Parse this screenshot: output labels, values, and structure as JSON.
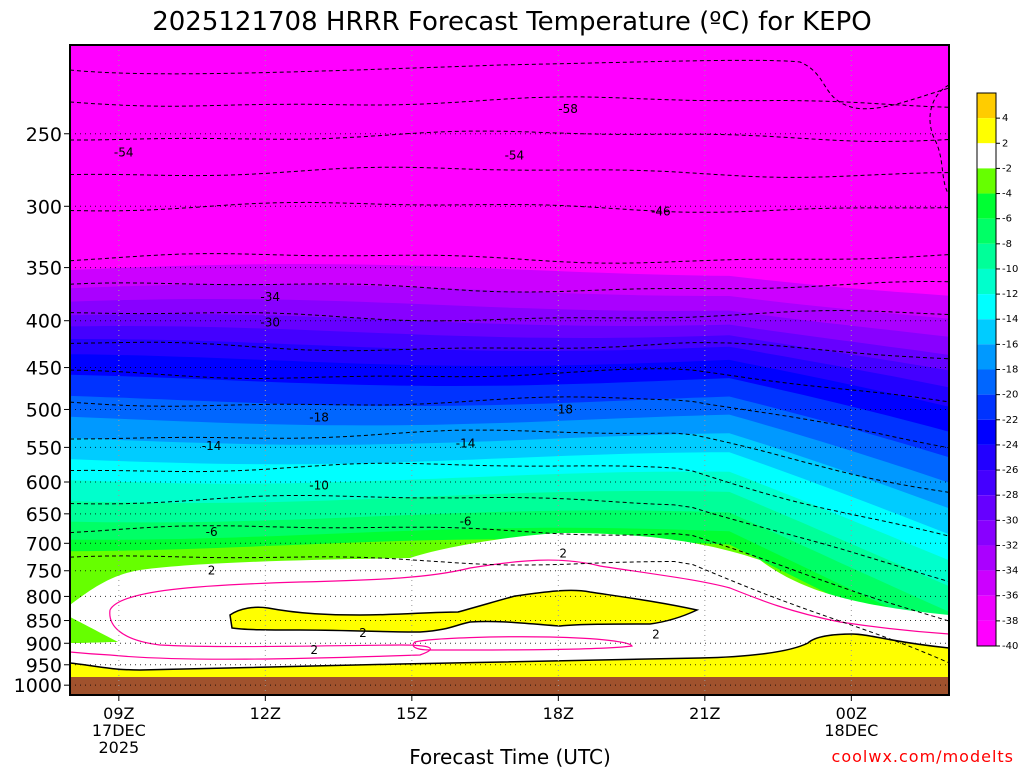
{
  "chart_data": {
    "type": "heatmap",
    "title": "2025121708 HRRR Forecast Temperature (ºC) for KEPO",
    "xlabel": "Forecast Time (UTC)",
    "ylabel": "",
    "watermark": "coolwx.com/modelts",
    "x_ticks": [
      {
        "time": 9,
        "label": "09Z",
        "sub1": "17DEC",
        "sub2": "2025"
      },
      {
        "time": 12,
        "label": "12Z"
      },
      {
        "time": 15,
        "label": "15Z"
      },
      {
        "time": 18,
        "label": "18Z"
      },
      {
        "time": 21,
        "label": "21Z"
      },
      {
        "time": 24,
        "label": "00Z",
        "sub1": "18DEC"
      }
    ],
    "x_range": [
      8,
      26
    ],
    "y_ticks": [
      250,
      300,
      350,
      400,
      450,
      500,
      550,
      600,
      650,
      700,
      750,
      800,
      850,
      900,
      950,
      1000
    ],
    "y_range_hpa": [
      200,
      1025
    ],
    "ground_hpa": 1005,
    "colorbar": {
      "ticks": [
        4,
        2,
        -2,
        -4,
        -6,
        -8,
        -10,
        -12,
        -14,
        -16,
        -18,
        -20,
        -22,
        -24,
        -26,
        -28,
        -30,
        -32,
        -34,
        -36,
        -38,
        -40
      ],
      "colors": [
        "#ffcc00",
        "#ffff00",
        "#ffffff",
        "#66ff00",
        "#00ff33",
        "#00ff66",
        "#00ff99",
        "#00ffcc",
        "#00ffff",
        "#00ccff",
        "#0099ff",
        "#0066ff",
        "#0033ff",
        "#0000ff",
        "#2200ff",
        "#4400ff",
        "#6600ff",
        "#8800ff",
        "#aa00ff",
        "#cc00ff",
        "#ee00ff",
        "#ff00ff"
      ]
    },
    "contour_labels": [
      {
        "value": "-58",
        "time": 18.2,
        "hpa": 235
      },
      {
        "value": "-54",
        "time": 9.1,
        "hpa": 262
      },
      {
        "value": "-54",
        "time": 17.1,
        "hpa": 264
      },
      {
        "value": "-46",
        "time": 20.1,
        "hpa": 304
      },
      {
        "value": "-34",
        "time": 12.1,
        "hpa": 377
      },
      {
        "value": "-30",
        "time": 12.1,
        "hpa": 402
      },
      {
        "value": "-18",
        "time": 13.1,
        "hpa": 510
      },
      {
        "value": "-18",
        "time": 18.1,
        "hpa": 500
      },
      {
        "value": "-14",
        "time": 10.9,
        "hpa": 548
      },
      {
        "value": "-14",
        "time": 16.1,
        "hpa": 545
      },
      {
        "value": "-10",
        "time": 13.1,
        "hpa": 605
      },
      {
        "value": "-6",
        "time": 10.9,
        "hpa": 680
      },
      {
        "value": "-6",
        "time": 16.1,
        "hpa": 663
      },
      {
        "value": "2",
        "time": 10.9,
        "hpa": 750
      },
      {
        "value": "2",
        "time": 18.1,
        "hpa": 718
      },
      {
        "value": "2",
        "time": 14.0,
        "hpa": 877
      },
      {
        "value": "2",
        "time": 13.0,
        "hpa": 915
      },
      {
        "value": "2",
        "time": 20.0,
        "hpa": 880
      }
    ]
  }
}
